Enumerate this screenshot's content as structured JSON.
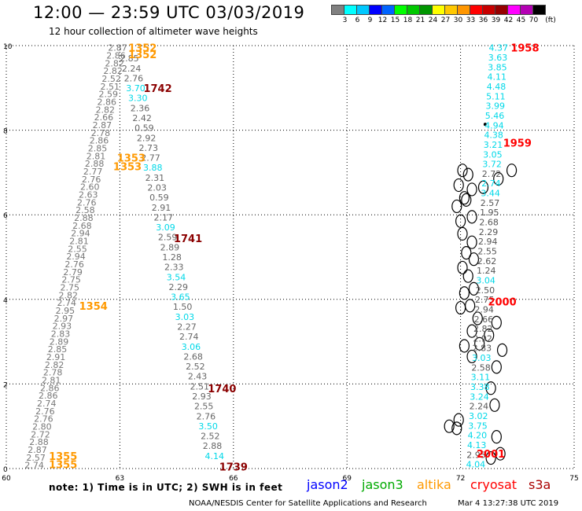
{
  "header": {
    "title": "12:00 — 23:59 UTC 03/03/2019",
    "subtitle": "12 hour collection of altimeter wave heights"
  },
  "color_scale": {
    "colors": [
      "#808080",
      "#00ffff",
      "#00c8ff",
      "#0000ff",
      "#0064ff",
      "#00ff00",
      "#00c800",
      "#009600",
      "#ffff00",
      "#ffc800",
      "#ff9600",
      "#ff0000",
      "#c80000",
      "#960000",
      "#ff00ff",
      "#b400b4",
      "#000000"
    ],
    "labels": [
      "3",
      "6",
      "9",
      "12",
      "15",
      "18",
      "21",
      "24",
      "27",
      "30",
      "33",
      "36",
      "39",
      "42",
      "45",
      "70"
    ],
    "unit": "(ft)"
  },
  "axes": {
    "x_ticks": [
      "60",
      "63",
      "66",
      "69",
      "72",
      "75"
    ],
    "y_ticks": [
      "0",
      "2",
      "4",
      "6",
      "8",
      "10"
    ]
  },
  "satellites": [
    {
      "name": "jason2",
      "color": "#0000ff"
    },
    {
      "name": "jason3",
      "color": "#00aa00"
    },
    {
      "name": "altika",
      "color": "#ff9900"
    },
    {
      "name": "cryosat",
      "color": "#ff0000"
    },
    {
      "name": "s3a",
      "color": "#aa0000"
    }
  ],
  "footer": {
    "note": "note: 1) Time is in UTC; 2) SWH is in feet",
    "credit": "NOAA/NESDIS Center for Satellite Applications and Research",
    "timestamp": "Mar  4 13:27:38 UTC 2019"
  },
  "tracks": [
    {
      "id": "altika-a",
      "color": "#777777",
      "x_start": 62.94,
      "x_end": 60.74,
      "y_start": 9.95,
      "y_end": 0.08,
      "values": [
        "2.87",
        "2.86",
        "2.82",
        "2.82",
        "2.52",
        "2.51",
        "2.59",
        "2.86",
        "2.82",
        "2.66",
        "2.87",
        "2.78",
        "2.86",
        "2.85",
        "2.81",
        "2.88",
        "2.77",
        "2.76",
        "2.60",
        "2.63",
        "2.76",
        "2.58",
        "2.88",
        "2.68",
        "2.94",
        "2.81",
        "2.55",
        "2.94",
        "2.76",
        "2.79",
        "2.75",
        "2.75",
        "2.82",
        "2.74",
        "2.95",
        "2.97",
        "2.93",
        "2.83",
        "2.89",
        "2.85",
        "2.91",
        "2.82",
        "2.78",
        "2.81",
        "2.86",
        "2.86",
        "2.74",
        "2.76",
        "2.76",
        "2.80",
        "2.72",
        "2.88",
        "2.87",
        "2.57",
        "2.74"
      ]
    },
    {
      "id": "s3a-a",
      "color": "#666666",
      "x_start": 63.25,
      "x_end": 65.5,
      "y_start": 9.7,
      "y_end": 0.3,
      "values": [
        "2.85",
        "2.24",
        "2.76",
        "3.70",
        "3.30",
        "2.36",
        "2.42",
        "0.59",
        "2.92",
        "2.73",
        "2.77",
        "3.88",
        "2.31",
        "2.03",
        "0.59",
        "2.91",
        "2.17",
        "3.09",
        "2.59",
        "2.89",
        "1.28",
        "2.33",
        "3.54",
        "2.29",
        "3.65",
        "1.50",
        "3.03",
        "2.27",
        "2.74",
        "3.06",
        "2.68",
        "2.52",
        "2.43",
        "2.51",
        "2.93",
        "2.55",
        "2.76",
        "3.50",
        "2.52",
        "2.88",
        "4.14"
      ],
      "cyan_idx": [
        3,
        4,
        11,
        17,
        22,
        24,
        26,
        29,
        37,
        40
      ]
    },
    {
      "id": "cryosat-a",
      "color": "#555555",
      "x_start": 73.0,
      "x_end": 72.4,
      "y_start": 9.95,
      "y_end": 0.1,
      "values": [
        "4.37",
        "3.63",
        "3.85",
        "4.11",
        "4.48",
        "5.11",
        "3.99",
        "5.46",
        "4.94",
        "4.38",
        "3.21",
        "3.05",
        "3.72",
        "2.72",
        "2.74",
        "3.44",
        "2.57",
        "1.95",
        "2.68",
        "2.29",
        "2.94",
        "2.55",
        "2.62",
        "1.24",
        "3.04",
        "2.50",
        "2.75",
        "2.94",
        "2.66",
        "2.82",
        "2.92",
        "2.83",
        "3.03",
        "2.58",
        "3.11",
        "3.38",
        "3.24",
        "2.24",
        "3.02",
        "3.75",
        "4.20",
        "4.13",
        "2.95",
        "4.04"
      ],
      "cyan_idx": [
        0,
        1,
        2,
        3,
        4,
        5,
        6,
        7,
        8,
        9,
        10,
        11,
        12,
        14,
        15,
        24,
        32,
        34,
        35,
        36,
        38,
        39,
        40,
        41,
        43
      ]
    }
  ],
  "time_labels": [
    {
      "text": "1352",
      "color": "#ff9900",
      "x": 63.6,
      "y": 9.95
    },
    {
      "text": "1352",
      "color": "#ff9900",
      "x": 63.6,
      "y": 9.8
    },
    {
      "text": "1742",
      "color": "#8b0000",
      "x": 64.0,
      "y": 9.0
    },
    {
      "text": "1353",
      "color": "#ff9900",
      "x": 63.3,
      "y": 7.35
    },
    {
      "text": "1353",
      "color": "#ff9900",
      "x": 63.2,
      "y": 7.15
    },
    {
      "text": "1741",
      "color": "#8b0000",
      "x": 64.8,
      "y": 5.45
    },
    {
      "text": "1354",
      "color": "#ff9900",
      "x": 62.3,
      "y": 3.85
    },
    {
      "text": "1740",
      "color": "#8b0000",
      "x": 65.7,
      "y": 1.9
    },
    {
      "text": "1355",
      "color": "#ff9900",
      "x": 61.5,
      "y": 0.3
    },
    {
      "text": "1355",
      "color": "#ff9900",
      "x": 61.5,
      "y": 0.1
    },
    {
      "text": "1739",
      "color": "#8b0000",
      "x": 66.0,
      "y": 0.05
    },
    {
      "text": "1958",
      "color": "#ff0000",
      "x": 73.7,
      "y": 9.95
    },
    {
      "text": "1959",
      "color": "#ff0000",
      "x": 73.5,
      "y": 7.7
    },
    {
      "text": "2000",
      "color": "#ff0000",
      "x": 73.1,
      "y": 3.95
    },
    {
      "text": "2001",
      "color": "#ff0000",
      "x": 72.8,
      "y": 0.35
    }
  ]
}
